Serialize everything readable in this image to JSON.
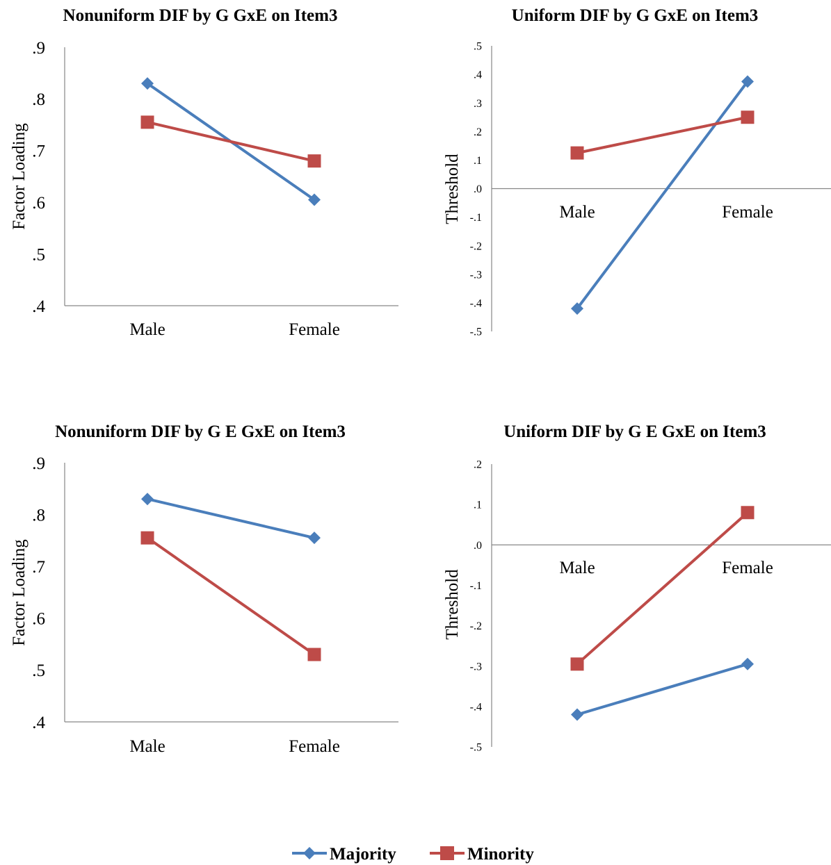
{
  "colors": {
    "majority": "#4A7EBB",
    "minority": "#BE4B48",
    "axis": "#868686"
  },
  "legend": {
    "majority_label": "Majority",
    "minority_label": "Minority"
  },
  "chart_data": [
    {
      "type": "line",
      "title": "Nonuniform DIF by G GxE on Item3",
      "xlabel": "",
      "ylabel": "Factor Loading",
      "categories": [
        "Male",
        "Female"
      ],
      "ylim": [
        0.4,
        0.9
      ],
      "yticks": [
        ".9",
        ".8",
        ".7",
        ".6",
        ".5",
        ".4"
      ],
      "series": [
        {
          "name": "Majority",
          "marker": "diamond",
          "values": [
            0.83,
            0.605
          ]
        },
        {
          "name": "Minority",
          "marker": "square",
          "values": [
            0.755,
            0.68
          ]
        }
      ]
    },
    {
      "type": "line",
      "title": "Uniform DIF by G GxE on Item3",
      "xlabel": "",
      "ylabel": "Threshold",
      "categories": [
        "Male",
        "Female"
      ],
      "ylim": [
        -0.5,
        0.5
      ],
      "yticks": [
        ".5",
        ".4",
        ".3",
        ".2",
        ".1",
        ".0",
        "-.1",
        "-.2",
        "-.3",
        "-.4",
        "-.5"
      ],
      "series": [
        {
          "name": "Majority",
          "marker": "diamond",
          "values": [
            -0.42,
            0.375
          ]
        },
        {
          "name": "Minority",
          "marker": "square",
          "values": [
            0.125,
            0.25
          ]
        }
      ]
    },
    {
      "type": "line",
      "title": "Nonuniform DIF by G E GxE on Item3",
      "xlabel": "",
      "ylabel": "Factor Loading",
      "categories": [
        "Male",
        "Female"
      ],
      "ylim": [
        0.4,
        0.9
      ],
      "yticks": [
        ".9",
        ".8",
        ".7",
        ".6",
        ".5",
        ".4"
      ],
      "series": [
        {
          "name": "Majority",
          "marker": "diamond",
          "values": [
            0.83,
            0.755
          ]
        },
        {
          "name": "Minority",
          "marker": "square",
          "values": [
            0.755,
            0.53
          ]
        }
      ]
    },
    {
      "type": "line",
      "title": "Uniform DIF by G E GxE on Item3",
      "xlabel": "",
      "ylabel": "Threshold",
      "categories": [
        "Male",
        "Female"
      ],
      "ylim": [
        -0.5,
        0.2
      ],
      "yticks": [
        ".2",
        ".1",
        ".0",
        "-.1",
        "-.2",
        "-.3",
        "-.4",
        "-.5"
      ],
      "series": [
        {
          "name": "Majority",
          "marker": "diamond",
          "values": [
            -0.42,
            -0.295
          ]
        },
        {
          "name": "Minority",
          "marker": "square",
          "values": [
            -0.295,
            0.08
          ]
        }
      ]
    }
  ]
}
